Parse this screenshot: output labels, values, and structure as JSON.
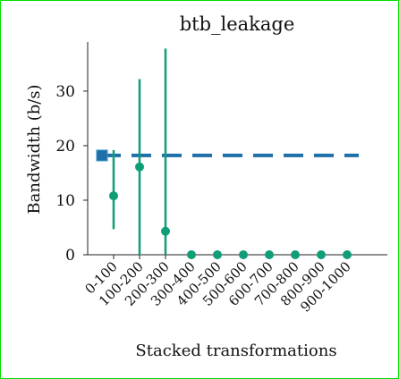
{
  "chart_data": {
    "type": "scatter",
    "title": "btb_leakage",
    "xlabel": "Stacked transformations",
    "ylabel": "Bandwidth (b/s)",
    "categories": [
      "0-100",
      "100-200",
      "200-300",
      "300-400",
      "400-500",
      "500-600",
      "600-700",
      "700-800",
      "800-900",
      "900-1000"
    ],
    "ylim": [
      0,
      39
    ],
    "yticks": [
      0,
      10,
      20,
      30
    ],
    "grid": false,
    "legend": "none",
    "reference": {
      "style": "dashed",
      "value": 18.2,
      "color": "#1f6fa8"
    },
    "series": [
      {
        "style": "point-with-error-bars",
        "color": "#0f9e78",
        "values": [
          10.8,
          16.1,
          4.3,
          0,
          0,
          0,
          0,
          0,
          0,
          0
        ],
        "error_low": [
          4.7,
          0,
          0,
          0,
          0,
          0,
          0,
          0,
          0,
          0
        ],
        "error_high": [
          19.2,
          32.2,
          37.8,
          0,
          0,
          0,
          0,
          0,
          0,
          0
        ]
      }
    ]
  }
}
